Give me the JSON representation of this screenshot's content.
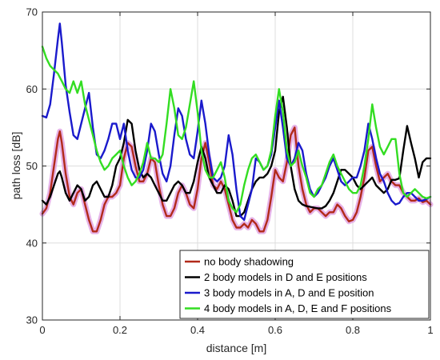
{
  "chart_data": {
    "type": "line",
    "title": "",
    "xlabel": "distance [m]",
    "ylabel": "path loss [dB]",
    "xlim": [
      0,
      1
    ],
    "ylim": [
      30,
      70
    ],
    "xticks": [
      0,
      0.2,
      0.4,
      0.6,
      0.8,
      1
    ],
    "xtick_labels": [
      "0",
      "0.2",
      "0.4",
      "0.6",
      "0.8",
      "1"
    ],
    "yticks": [
      30,
      40,
      50,
      60,
      70
    ],
    "ytick_labels": [
      "30",
      "40",
      "50",
      "60",
      "70"
    ],
    "grid": true,
    "legend_placement": "bottom-right",
    "colors": {
      "no_body": "#b22a1a",
      "two_body": "#000000",
      "three_body": "#1a1acc",
      "four_body": "#33dd22",
      "shadow": "#e2a6e4",
      "grid": "#dddddd",
      "axis": "#262626"
    },
    "series": [
      {
        "name": "no body shadowing",
        "color_key": "no_body",
        "x": [
          0,
          0.01,
          0.02,
          0.03,
          0.04,
          0.045,
          0.05,
          0.06,
          0.07,
          0.08,
          0.09,
          0.1,
          0.11,
          0.12,
          0.13,
          0.14,
          0.15,
          0.16,
          0.17,
          0.18,
          0.19,
          0.2,
          0.21,
          0.22,
          0.23,
          0.24,
          0.25,
          0.26,
          0.27,
          0.28,
          0.29,
          0.3,
          0.31,
          0.32,
          0.33,
          0.34,
          0.35,
          0.36,
          0.37,
          0.38,
          0.39,
          0.4,
          0.41,
          0.42,
          0.43,
          0.44,
          0.45,
          0.46,
          0.47,
          0.48,
          0.49,
          0.5,
          0.51,
          0.52,
          0.53,
          0.54,
          0.55,
          0.56,
          0.57,
          0.58,
          0.59,
          0.6,
          0.61,
          0.62,
          0.63,
          0.64,
          0.65,
          0.66,
          0.67,
          0.68,
          0.69,
          0.7,
          0.71,
          0.72,
          0.73,
          0.74,
          0.75,
          0.76,
          0.77,
          0.78,
          0.79,
          0.8,
          0.81,
          0.82,
          0.83,
          0.84,
          0.85,
          0.86,
          0.87,
          0.88,
          0.89,
          0.9,
          0.91,
          0.92,
          0.93,
          0.94,
          0.95,
          0.96,
          0.97,
          0.98,
          0.99,
          1
        ],
        "y": [
          43.8,
          44.5,
          46.5,
          50,
          53.5,
          54.5,
          53,
          49,
          46,
          45,
          46.5,
          47,
          45,
          43,
          41.5,
          41.5,
          43,
          45,
          46,
          46,
          46.5,
          47.5,
          51,
          53,
          52.5,
          50,
          48,
          48,
          49,
          51,
          50.5,
          47.5,
          45,
          43.5,
          43.5,
          44.5,
          46.5,
          47.5,
          46.5,
          45,
          44.5,
          47,
          51,
          53,
          50.5,
          47.5,
          47,
          48,
          47,
          45,
          43,
          42,
          42,
          42.5,
          42,
          43,
          42.5,
          41.5,
          41.5,
          43,
          46,
          49.5,
          48.5,
          48,
          50.5,
          54,
          55,
          50,
          47,
          45,
          44,
          44.5,
          44.5,
          44,
          43.5,
          44,
          44,
          45,
          44.5,
          43.5,
          42.8,
          43,
          44,
          46,
          48.5,
          52,
          52.5,
          50,
          48,
          48.5,
          49,
          48,
          47.5,
          47.5,
          46.5,
          46,
          45.5,
          45.5,
          45.8,
          45.3,
          45.5,
          45
        ]
      },
      {
        "name": "2 body models in D and E positions",
        "color_key": "two_body",
        "x": [
          0,
          0.01,
          0.02,
          0.03,
          0.04,
          0.045,
          0.05,
          0.06,
          0.07,
          0.08,
          0.09,
          0.1,
          0.11,
          0.12,
          0.13,
          0.14,
          0.15,
          0.16,
          0.17,
          0.18,
          0.19,
          0.2,
          0.21,
          0.22,
          0.23,
          0.24,
          0.25,
          0.26,
          0.27,
          0.28,
          0.29,
          0.3,
          0.31,
          0.32,
          0.33,
          0.34,
          0.35,
          0.36,
          0.37,
          0.38,
          0.39,
          0.4,
          0.41,
          0.42,
          0.43,
          0.44,
          0.45,
          0.46,
          0.47,
          0.48,
          0.49,
          0.5,
          0.51,
          0.52,
          0.53,
          0.54,
          0.55,
          0.56,
          0.57,
          0.58,
          0.59,
          0.6,
          0.61,
          0.62,
          0.63,
          0.64,
          0.65,
          0.66,
          0.67,
          0.68,
          0.69,
          0.7,
          0.71,
          0.72,
          0.73,
          0.74,
          0.75,
          0.76,
          0.77,
          0.78,
          0.79,
          0.8,
          0.81,
          0.82,
          0.83,
          0.84,
          0.85,
          0.86,
          0.87,
          0.88,
          0.89,
          0.9,
          0.91,
          0.92,
          0.93,
          0.94,
          0.95,
          0.96,
          0.97,
          0.98,
          0.99,
          1
        ],
        "y": [
          45.5,
          45,
          46,
          47.5,
          49,
          49.3,
          48.5,
          46.5,
          45.5,
          46.5,
          47.5,
          47,
          45.5,
          46,
          47.5,
          48,
          47,
          46,
          46,
          47.5,
          50,
          51,
          53,
          56,
          55.5,
          52,
          49.5,
          48.5,
          49,
          48.5,
          47.5,
          46.5,
          45.5,
          45.5,
          46.5,
          47.5,
          48,
          47.5,
          46.5,
          46.5,
          48,
          50.5,
          52.5,
          51,
          48.5,
          47.5,
          46.5,
          46.5,
          47.5,
          47,
          45.5,
          43.5,
          43.5,
          44,
          45.5,
          47,
          48,
          48.5,
          48.5,
          49,
          50,
          52,
          57,
          59,
          55,
          50,
          47,
          45.5,
          45,
          44.8,
          44.7,
          44.6,
          44.5,
          44.5,
          44.8,
          45.5,
          46.5,
          48,
          49.5,
          49.5,
          49,
          48.5,
          47.5,
          47,
          47.5,
          48,
          48.5,
          47.5,
          47,
          46.5,
          47,
          48.2,
          48.2,
          48.4,
          52,
          55.2,
          53,
          51,
          48.5,
          50.5,
          51,
          51
        ]
      },
      {
        "name": "3 body models in A, D and E position",
        "color_key": "three_body",
        "x": [
          0,
          0.01,
          0.02,
          0.03,
          0.04,
          0.045,
          0.05,
          0.06,
          0.07,
          0.08,
          0.09,
          0.1,
          0.11,
          0.12,
          0.13,
          0.14,
          0.15,
          0.16,
          0.17,
          0.18,
          0.19,
          0.2,
          0.21,
          0.22,
          0.23,
          0.24,
          0.25,
          0.26,
          0.27,
          0.28,
          0.29,
          0.3,
          0.31,
          0.32,
          0.33,
          0.34,
          0.35,
          0.36,
          0.37,
          0.38,
          0.39,
          0.4,
          0.41,
          0.42,
          0.43,
          0.44,
          0.45,
          0.46,
          0.47,
          0.48,
          0.49,
          0.5,
          0.51,
          0.52,
          0.53,
          0.54,
          0.55,
          0.56,
          0.57,
          0.58,
          0.59,
          0.6,
          0.61,
          0.62,
          0.63,
          0.64,
          0.65,
          0.66,
          0.67,
          0.68,
          0.69,
          0.7,
          0.71,
          0.72,
          0.73,
          0.74,
          0.75,
          0.76,
          0.77,
          0.78,
          0.79,
          0.8,
          0.81,
          0.82,
          0.83,
          0.84,
          0.85,
          0.86,
          0.87,
          0.88,
          0.89,
          0.9,
          0.91,
          0.92,
          0.93,
          0.94,
          0.95,
          0.96,
          0.97,
          0.98,
          0.99,
          1
        ],
        "y": [
          56.5,
          56.3,
          58,
          62,
          66.5,
          68.5,
          66,
          60.5,
          57,
          54,
          53.5,
          55.5,
          57.5,
          59.5,
          55,
          51.5,
          51,
          52,
          53.5,
          55.5,
          55.5,
          53.5,
          55.5,
          52,
          49.5,
          48.5,
          48.5,
          49.5,
          52,
          55.5,
          54.5,
          51.5,
          49,
          48,
          50,
          54,
          57.5,
          56.5,
          53.5,
          51.5,
          51,
          54.5,
          58.5,
          55.5,
          51.5,
          48.5,
          48,
          48.5,
          50,
          54,
          51.5,
          47,
          43.5,
          43,
          45,
          47,
          51,
          50.5,
          49.5,
          50,
          51.5,
          55,
          58.5,
          55,
          51,
          50,
          51,
          53,
          52,
          49,
          47,
          46,
          46.5,
          47.5,
          48.5,
          50,
          51,
          49.5,
          48,
          47.5,
          48,
          48.5,
          48.5,
          50,
          52,
          55.5,
          53.5,
          51,
          49,
          48,
          46.5,
          45.5,
          45,
          45.2,
          46,
          46.5,
          46.5,
          46,
          45.5,
          45.5,
          45.7,
          46
        ]
      },
      {
        "name": "4 body models in A, D, E and F positions",
        "color_key": "four_body",
        "x": [
          0,
          0.01,
          0.02,
          0.03,
          0.04,
          0.045,
          0.05,
          0.06,
          0.07,
          0.08,
          0.09,
          0.1,
          0.11,
          0.12,
          0.13,
          0.14,
          0.15,
          0.16,
          0.17,
          0.18,
          0.19,
          0.2,
          0.21,
          0.22,
          0.23,
          0.24,
          0.25,
          0.26,
          0.27,
          0.28,
          0.29,
          0.3,
          0.31,
          0.32,
          0.33,
          0.34,
          0.35,
          0.36,
          0.37,
          0.38,
          0.39,
          0.4,
          0.41,
          0.42,
          0.43,
          0.44,
          0.45,
          0.46,
          0.47,
          0.48,
          0.49,
          0.5,
          0.51,
          0.52,
          0.53,
          0.54,
          0.55,
          0.56,
          0.57,
          0.58,
          0.59,
          0.6,
          0.61,
          0.62,
          0.63,
          0.64,
          0.65,
          0.66,
          0.67,
          0.68,
          0.69,
          0.7,
          0.71,
          0.72,
          0.73,
          0.74,
          0.75,
          0.76,
          0.77,
          0.78,
          0.79,
          0.8,
          0.81,
          0.82,
          0.83,
          0.84,
          0.85,
          0.86,
          0.87,
          0.88,
          0.89,
          0.9,
          0.91,
          0.92,
          0.93,
          0.94,
          0.95,
          0.96,
          0.97,
          0.98,
          0.99,
          1
        ],
        "y": [
          65.5,
          64,
          63,
          62.5,
          62,
          61.5,
          61,
          60,
          59.5,
          61,
          59.5,
          61,
          58,
          56,
          54,
          52,
          50.5,
          49.5,
          50,
          51,
          51.5,
          52,
          50,
          48.5,
          47.5,
          48,
          49,
          50.5,
          53,
          51,
          51,
          50.5,
          51.5,
          55.5,
          60,
          57.5,
          54,
          53.5,
          55,
          58,
          61,
          57,
          52,
          49.5,
          48.5,
          48.5,
          49.5,
          50.5,
          48.5,
          45.5,
          44.5,
          44,
          45,
          47.5,
          49.5,
          51,
          51.5,
          50.5,
          49.5,
          50,
          52,
          56.5,
          60,
          57,
          52,
          50,
          50.5,
          52,
          50,
          48.5,
          46.5,
          46,
          47,
          47.5,
          49,
          50.5,
          51.5,
          50,
          49,
          48,
          47,
          46.5,
          46.5,
          47.5,
          50,
          53.5,
          58,
          55,
          52.5,
          51.5,
          52.5,
          53.5,
          53.5,
          49,
          46.5,
          46,
          46.5,
          47,
          46.5,
          46,
          45.8,
          46
        ]
      }
    ]
  }
}
